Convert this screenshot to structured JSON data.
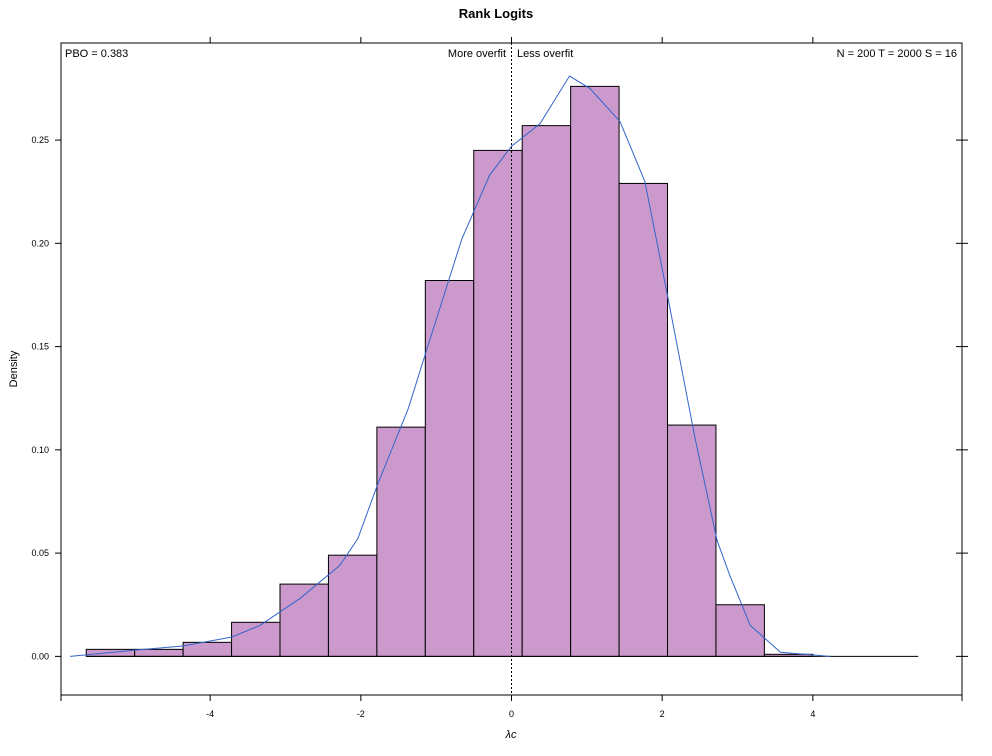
{
  "chart_data": {
    "type": "bar",
    "title": "Rank Logits",
    "xlabel": "λc",
    "ylabel": "Density",
    "xlim": [
      -5.98,
      5.98
    ],
    "ylim": [
      -0.0187,
      0.297
    ],
    "xticks": [
      -4,
      -2,
      0,
      2,
      4
    ],
    "xtick_labels": [
      "-4",
      "-2",
      "0",
      "2",
      "4"
    ],
    "yticks": [
      0,
      0.05,
      0.1,
      0.15,
      0.2,
      0.25
    ],
    "ytick_labels": [
      "0.00",
      "0.05",
      "0.10",
      "0.15",
      "0.20",
      "0.25"
    ],
    "grid": false,
    "bar_fill": "#CC99CC",
    "bar_stroke": "#000000",
    "line_color": "#3366CC",
    "bin_edges": [
      -5.645,
      -5.002,
      -4.359,
      -3.716,
      -3.073,
      -2.43,
      -1.787,
      -1.144,
      -0.501,
      0.142,
      0.785,
      1.428,
      2.071,
      2.714,
      3.357,
      4.0
    ],
    "values": [
      0.0034,
      0.0034,
      0.0068,
      0.0165,
      0.035,
      0.049,
      0.111,
      0.182,
      0.245,
      0.257,
      0.276,
      0.229,
      0.112,
      0.025,
      0.001
    ],
    "density_line": {
      "x": [
        -5.86,
        -5.0,
        -4.36,
        -3.71,
        -3.34,
        -2.81,
        -2.28,
        -2.04,
        -1.78,
        -1.37,
        -1.13,
        -0.66,
        -0.29,
        0.0,
        0.38,
        0.77,
        1.04,
        1.44,
        1.77,
        2.08,
        2.44,
        2.73,
        2.9,
        3.17,
        3.57,
        4.23
      ],
      "y": [
        0,
        0.003,
        0.005,
        0.0094,
        0.015,
        0.028,
        0.044,
        0.057,
        0.083,
        0.12,
        0.148,
        0.202,
        0.233,
        0.247,
        0.258,
        0.281,
        0.275,
        0.259,
        0.23,
        0.173,
        0.105,
        0.056,
        0.039,
        0.015,
        0.002,
        0
      ]
    },
    "baseline": {
      "y": 0,
      "x_to": 5.4
    },
    "vline_x": 0,
    "annotations": {
      "pbo": "PBO = 0.383",
      "more_overfit": "More overfit",
      "less_overfit": "Less overfit",
      "stats": "N = 200  T = 2000  S = 16"
    }
  }
}
